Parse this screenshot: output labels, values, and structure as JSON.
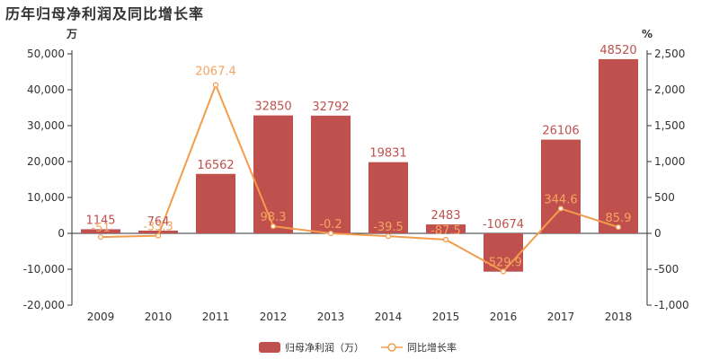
{
  "title": "历年归母净利润及同比增长率",
  "chart_data": {
    "type": "bar",
    "title": "历年归母净利润及同比增长率",
    "categories": [
      "2009",
      "2010",
      "2011",
      "2012",
      "2013",
      "2014",
      "2015",
      "2016",
      "2017",
      "2018"
    ],
    "left_axis": {
      "unit": "万",
      "range": [
        -20000,
        50000
      ],
      "ticks": [
        "-20,000",
        "-10,000",
        "0",
        "10,000",
        "20,000",
        "30,000",
        "40,000",
        "50,000"
      ]
    },
    "right_axis": {
      "unit": "%",
      "range": [
        -1000,
        2500
      ],
      "ticks": [
        "-1,000",
        "-500",
        "0",
        "500",
        "1,000",
        "1,500",
        "2,000",
        "2,500"
      ]
    },
    "series": [
      {
        "name": "归母净利润（万）",
        "type": "bar",
        "axis": "left",
        "color": "#c0504d",
        "values": [
          1145,
          764,
          16562,
          32850,
          32792,
          19831,
          2483,
          -10674,
          26106,
          48520
        ],
        "labels": [
          "1145",
          "764",
          "16562",
          "32850",
          "32792",
          "19831",
          "2483",
          "-10674",
          "26106",
          "48520"
        ]
      },
      {
        "name": "同比增长率",
        "type": "line",
        "axis": "right",
        "color": "#f4a460",
        "values": [
          -51,
          -33.3,
          2067.4,
          98.3,
          -0.2,
          -39.5,
          -87.5,
          -529.9,
          344.6,
          85.9
        ],
        "labels": [
          "-51",
          "-33.3",
          "2067.4",
          "98.3",
          "-0.2",
          "-39.5",
          "-87.5",
          "-529.9",
          "344.6",
          "85.9"
        ]
      }
    ],
    "legend_position": "bottom-center",
    "grid": false
  }
}
